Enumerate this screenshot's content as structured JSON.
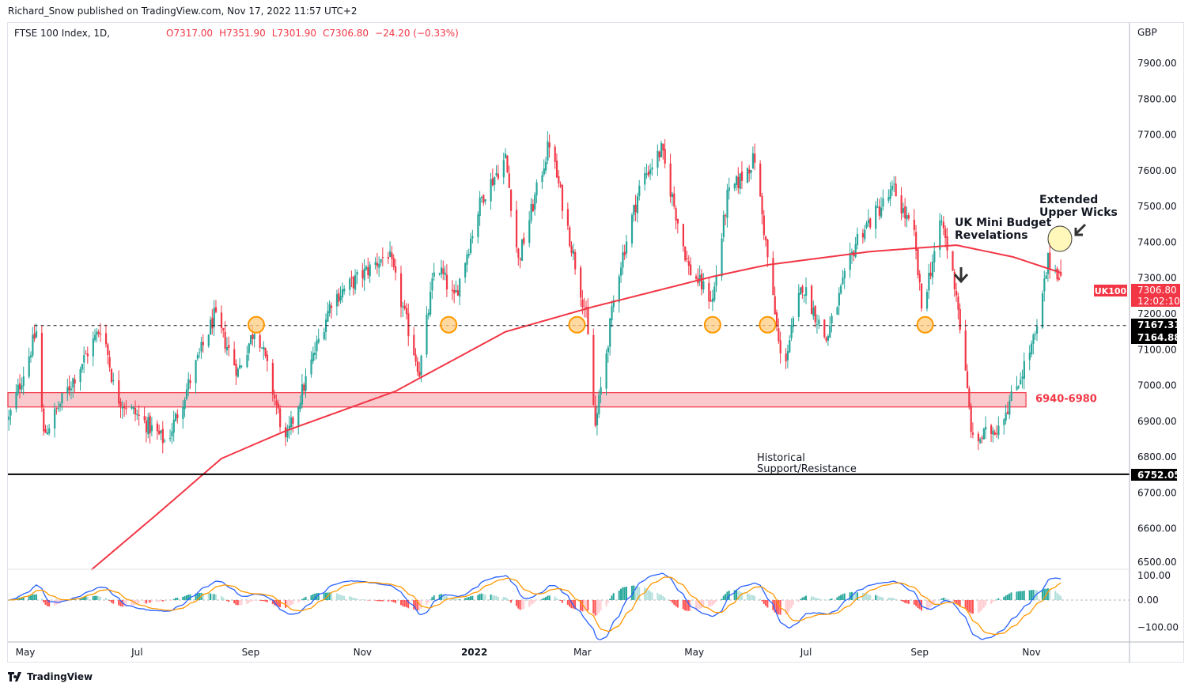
{
  "header": {
    "published": "Richard_Snow published on TradingView.com, Nov 17, 2022 11:57 UTC+2",
    "symbol": "FTSE 100 Index, 1D,",
    "open": "O7317.00",
    "high": "H7351.90",
    "low": "L7301.90",
    "close": "C7306.80",
    "change": "−24.20 (−0.33%)"
  },
  "footer": {
    "brand": "TradingView"
  },
  "colors": {
    "up": "#26a69a",
    "down": "#f23645",
    "ma": "#f23645",
    "macd": "#2962ff",
    "signal": "#ff9800",
    "zone": "#f7b7bd"
  },
  "chart_data": {
    "type": "candlestick",
    "currency": "GBP",
    "ylim": [
      6480,
      7960
    ],
    "y_ticks": [
      "7900.00",
      "7800.00",
      "7700.00",
      "7600.00",
      "7500.00",
      "7400.00",
      "7300.00",
      "7200.00",
      "7100.00",
      "7000.00",
      "6900.00",
      "6800.00",
      "6700.00",
      "6600.00",
      "6500.00"
    ],
    "x_ticks": [
      {
        "label": "May",
        "date": "2021-05-01"
      },
      {
        "label": "Jul",
        "date": "2021-07-01"
      },
      {
        "label": "Sep",
        "date": "2021-09-01"
      },
      {
        "label": "Nov",
        "date": "2021-11-01"
      },
      {
        "label": "2022",
        "date": "2022-01-01"
      },
      {
        "label": "Mar",
        "date": "2022-03-01"
      },
      {
        "label": "May",
        "date": "2022-05-01"
      },
      {
        "label": "Jul",
        "date": "2022-07-01"
      },
      {
        "label": "Sep",
        "date": "2022-09-01"
      },
      {
        "label": "Nov",
        "date": "2022-11-01"
      }
    ],
    "date_range": [
      "2021-04-22",
      "2022-12-31"
    ],
    "price_path": [
      [
        "2021-04-22",
        6906
      ],
      [
        "2021-05-07",
        7150
      ],
      [
        "2021-05-11",
        6862
      ],
      [
        "2021-06-12",
        7171
      ],
      [
        "2021-06-19",
        6973
      ],
      [
        "2021-07-17",
        6840
      ],
      [
        "2021-08-12",
        7193
      ],
      [
        "2021-08-25",
        7039
      ],
      [
        "2021-09-04",
        7171
      ],
      [
        "2021-09-20",
        6840
      ],
      [
        "2021-10-15",
        7238
      ],
      [
        "2021-11-15",
        7370
      ],
      [
        "2021-12-02",
        7039
      ],
      [
        "2021-12-11",
        7348
      ],
      [
        "2021-12-21",
        7238
      ],
      [
        "2022-01-05",
        7525
      ],
      [
        "2022-01-18",
        7635
      ],
      [
        "2022-01-25",
        7348
      ],
      [
        "2022-02-11",
        7680
      ],
      [
        "2022-02-22",
        7414
      ],
      [
        "2022-03-03",
        7193
      ],
      [
        "2022-03-08",
        6884
      ],
      [
        "2022-03-20",
        7304
      ],
      [
        "2022-04-02",
        7570
      ],
      [
        "2022-04-13",
        7657
      ],
      [
        "2022-04-28",
        7326
      ],
      [
        "2022-05-11",
        7238
      ],
      [
        "2022-05-19",
        7525
      ],
      [
        "2022-06-03",
        7635
      ],
      [
        "2022-06-08",
        7436
      ],
      [
        "2022-06-18",
        7039
      ],
      [
        "2022-06-29",
        7282
      ],
      [
        "2022-07-12",
        7127
      ],
      [
        "2022-07-29",
        7414
      ],
      [
        "2022-08-18",
        7547
      ],
      [
        "2022-08-29",
        7414
      ],
      [
        "2022-09-02",
        7216
      ],
      [
        "2022-09-13",
        7458
      ],
      [
        "2022-09-21",
        7260
      ],
      [
        "2022-09-30",
        6840
      ],
      [
        "2022-10-13",
        6884
      ],
      [
        "2022-10-22",
        6973
      ],
      [
        "2022-11-04",
        7150
      ],
      [
        "2022-11-10",
        7348
      ],
      [
        "2022-11-17",
        7307
      ]
    ],
    "last_candle": {
      "open": 7317.0,
      "high": 7351.9,
      "low": 7301.9,
      "close": 7306.8
    },
    "ma200_path": [
      [
        "2021-06-06",
        6485
      ],
      [
        "2021-07-12",
        6641
      ],
      [
        "2021-08-16",
        6796
      ],
      [
        "2021-09-20",
        6873
      ],
      [
        "2021-11-19",
        6984
      ],
      [
        "2022-01-18",
        7150
      ],
      [
        "2022-03-07",
        7220
      ],
      [
        "2022-05-11",
        7304
      ],
      [
        "2022-06-10",
        7337
      ],
      [
        "2022-08-05",
        7374
      ],
      [
        "2022-09-21",
        7392
      ],
      [
        "2022-10-22",
        7359
      ],
      [
        "2022-11-17",
        7315
      ]
    ],
    "levels": {
      "dashed": {
        "value": 7167.31,
        "label": "7167.31",
        "from": "2021-05-06"
      },
      "dashed2_label": "7164.88",
      "solid": {
        "value": 6752.05,
        "label": "6752.05"
      },
      "zone": {
        "low": 6940,
        "high": 6980,
        "label": "6940-6980",
        "to": "2022-10-29"
      }
    },
    "price_tag": {
      "symbol": "UK100",
      "price": "7306.80",
      "countdown": "12:02:10"
    },
    "touch_points": [
      "2021-09-04",
      "2021-12-18",
      "2022-02-26",
      "2022-05-11",
      "2022-06-10",
      "2022-09-04"
    ],
    "annotations": {
      "budget": [
        "UK Mini Budget",
        "Revelations"
      ],
      "wicks": [
        "Extended",
        "Upper Wicks"
      ],
      "historical": [
        "Historical",
        "Support/Resistance"
      ]
    },
    "macd": {
      "ylim": [
        -135,
        100
      ],
      "ticks": [
        "100.00",
        "0.00",
        "−100.00"
      ],
      "tick_values": [
        100,
        0,
        -100
      ]
    }
  }
}
